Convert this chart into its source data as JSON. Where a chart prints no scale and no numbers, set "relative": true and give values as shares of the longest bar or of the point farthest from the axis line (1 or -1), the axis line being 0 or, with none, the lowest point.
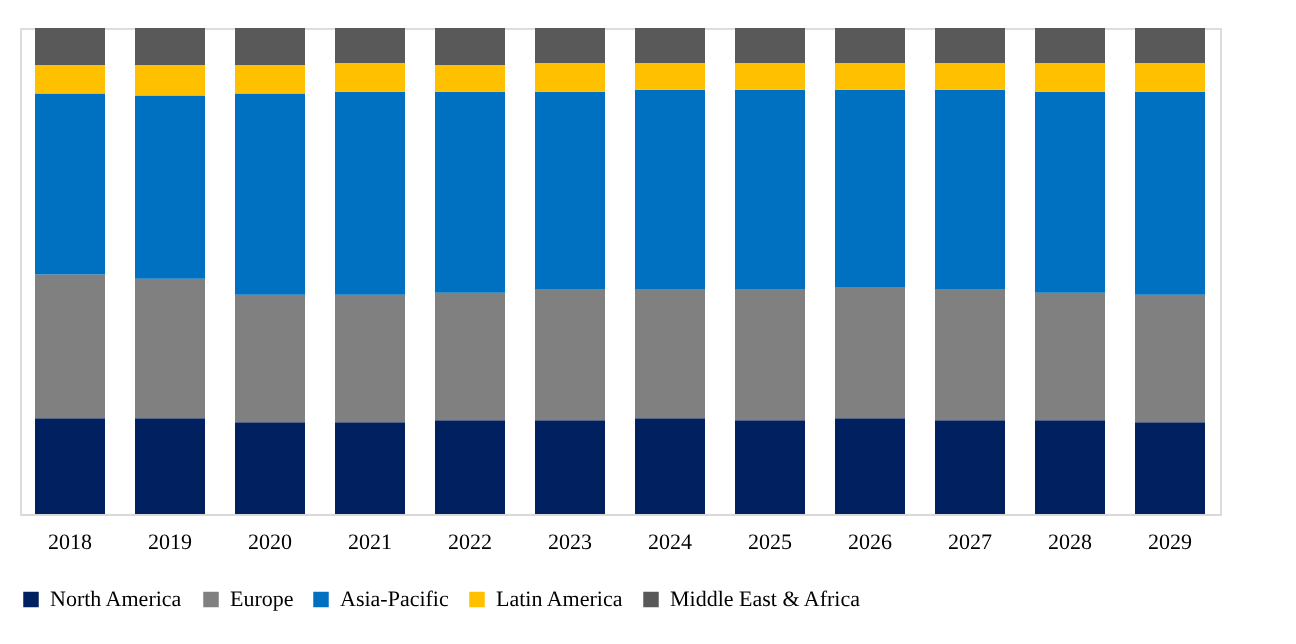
{
  "chart_data": {
    "type": "bar",
    "stacked": true,
    "relative": true,
    "legend": "bottom",
    "grid": false,
    "categories": [
      "2018",
      "2019",
      "2020",
      "2021",
      "2022",
      "2023",
      "2024",
      "2025",
      "2026",
      "2027",
      "2028",
      "2029"
    ],
    "series": [
      {
        "name": "North America",
        "color": "#002060",
        "values": [
          0.197,
          0.197,
          0.189,
          0.189,
          0.193,
          0.193,
          0.197,
          0.193,
          0.197,
          0.193,
          0.193,
          0.189
        ]
      },
      {
        "name": "Europe",
        "color": "#808080",
        "values": [
          0.296,
          0.287,
          0.262,
          0.262,
          0.262,
          0.27,
          0.266,
          0.27,
          0.27,
          0.27,
          0.262,
          0.262
        ]
      },
      {
        "name": "Asia-Pacific",
        "color": "#0070c0",
        "values": [
          0.372,
          0.377,
          0.414,
          0.418,
          0.414,
          0.406,
          0.41,
          0.41,
          0.406,
          0.41,
          0.414,
          0.418
        ]
      },
      {
        "name": "Latin America",
        "color": "#ffc000",
        "values": [
          0.059,
          0.063,
          0.059,
          0.059,
          0.055,
          0.059,
          0.055,
          0.055,
          0.055,
          0.055,
          0.059,
          0.059
        ]
      },
      {
        "name": "Middle East & Africa",
        "color": "#595959",
        "values": [
          0.076,
          0.076,
          0.076,
          0.072,
          0.076,
          0.072,
          0.072,
          0.072,
          0.072,
          0.072,
          0.072,
          0.072
        ]
      }
    ]
  }
}
